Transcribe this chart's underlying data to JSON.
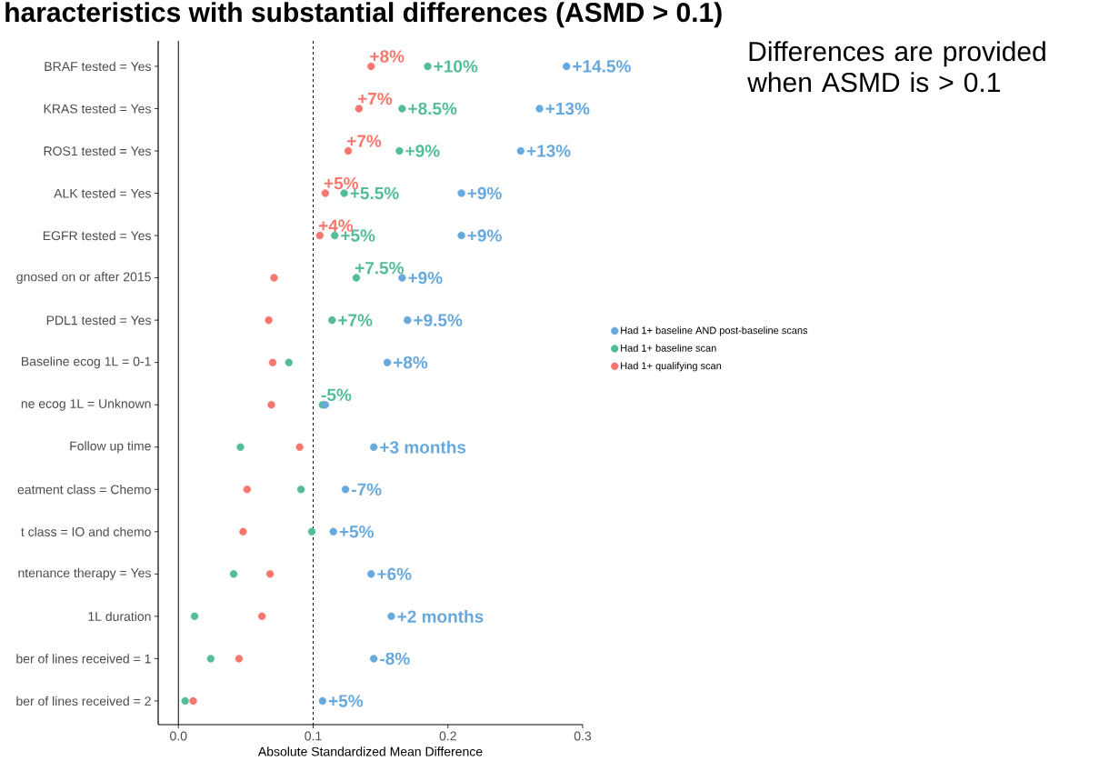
{
  "chart_data": {
    "type": "scatter",
    "orientation": "horizontal",
    "title": "haracteristics with substantial differences (ASMD > 0.1)",
    "xlabel": "Absolute Standardized Mean Difference",
    "annotations": [
      "Differences are provided when ASMD is > 0.1",
      {
        "text": "+14.5%",
        "x": 0.288,
        "y": "BRAF tested = Yes"
      },
      {
        "text": "+10%",
        "x": 0.185,
        "y": "BRAF tested = Yes"
      },
      {
        "text": "+8%",
        "x": 0.143,
        "y": "BRAF tested = Yes"
      },
      {
        "text": "+13%",
        "x": 0.268,
        "y": "KRAS tested = Yes"
      },
      {
        "text": "+8.5%",
        "x": 0.166,
        "y": "KRAS tested = Yes"
      },
      {
        "text": "+7%",
        "x": 0.134,
        "y": "KRAS tested = Yes"
      },
      {
        "text": "+13%",
        "x": 0.254,
        "y": "ROS1 tested = Yes"
      },
      {
        "text": "+9%",
        "x": 0.164,
        "y": "ROS1 tested = Yes"
      },
      {
        "text": "+7%",
        "x": 0.126,
        "y": "ROS1 tested = Yes"
      },
      {
        "text": "+9%",
        "x": 0.21,
        "y": "ALK tested = Yes"
      },
      {
        "text": "+5.5%",
        "x": 0.123,
        "y": "ALK tested = Yes"
      },
      {
        "text": "+5%",
        "x": 0.109,
        "y": "ALK tested = Yes"
      },
      {
        "text": "+9%",
        "x": 0.21,
        "y": "EGFR tested = Yes"
      },
      {
        "text": "+5%",
        "x": 0.116,
        "y": "EGFR tested = Yes"
      },
      {
        "text": "+4%",
        "x": 0.105,
        "y": "EGFR tested = Yes"
      },
      {
        "text": "+9%",
        "x": 0.166,
        "y": "gnosed on or after 2015"
      },
      {
        "text": "+7.5%",
        "x": 0.132,
        "y": "gnosed on or after 2015"
      },
      {
        "text": "+9.5%",
        "x": 0.17,
        "y": "PDL1 tested = Yes"
      },
      {
        "text": "+7%",
        "x": 0.114,
        "y": "PDL1 tested = Yes"
      },
      {
        "text": "+8%",
        "x": 0.155,
        "y": "Baseline ecog 1L = 0-1"
      },
      {
        "text": "-5%",
        "x": 0.107,
        "y": "ne ecog 1L = Unknown"
      },
      {
        "text": "+3 months",
        "x": 0.145,
        "y": "Follow up time"
      },
      {
        "text": "-7%",
        "x": 0.124,
        "y": "eatment class = Chemo"
      },
      {
        "text": "+5%",
        "x": 0.115,
        "y": "t class = IO and chemo"
      },
      {
        "text": "+6%",
        "x": 0.143,
        "y": "ntenance therapy = Yes"
      },
      {
        "text": "+2 months",
        "x": 0.158,
        "y": "1L duration"
      },
      {
        "text": "-8%",
        "x": 0.145,
        "y": "ber of lines received = 1"
      },
      {
        "text": "+5%",
        "x": 0.107,
        "y": "ber of lines received = 2"
      }
    ],
    "categories": [
      "BRAF tested = Yes",
      "KRAS tested = Yes",
      "ROS1 tested = Yes",
      "ALK tested = Yes",
      "EGFR tested = Yes",
      "gnosed on or after 2015",
      "PDL1 tested = Yes",
      "Baseline ecog 1L = 0-1",
      "ne ecog 1L = Unknown",
      "Follow up time",
      "eatment class = Chemo",
      "t class = IO and chemo",
      "ntenance therapy = Yes",
      "1L duration",
      "ber of lines received = 1",
      "ber of lines received = 2"
    ],
    "series": [
      {
        "name": "Had 1+ baseline AND post-baseline scans",
        "color": "#67a9dc",
        "values": [
          0.288,
          0.268,
          0.254,
          0.21,
          0.21,
          0.166,
          0.17,
          0.155,
          0.109,
          0.145,
          0.124,
          0.115,
          0.143,
          0.158,
          0.145,
          0.107
        ]
      },
      {
        "name": "Had 1+ baseline scan",
        "color": "#52bd96",
        "values": [
          0.185,
          0.166,
          0.164,
          0.123,
          0.116,
          0.132,
          0.114,
          0.082,
          0.107,
          0.046,
          0.091,
          0.099,
          0.041,
          0.012,
          0.024,
          0.005
        ]
      },
      {
        "name": "Had 1+ qualifying scan",
        "color": "#f8766d",
        "values": [
          0.143,
          0.134,
          0.126,
          0.109,
          0.105,
          0.071,
          0.067,
          0.07,
          0.069,
          0.09,
          0.051,
          0.048,
          0.068,
          0.062,
          0.045,
          0.011
        ]
      }
    ],
    "xlim": [
      -0.015,
      0.3
    ],
    "xticks": [
      {
        "value": 0,
        "label": "0.0"
      },
      0.1,
      0.2,
      0.3
    ],
    "ref_lines": [
      {
        "axis": "x",
        "value": 0,
        "line_style": "solid",
        "color": "#000000"
      },
      {
        "axis": "x",
        "value": 0.1,
        "line_style": "dashed",
        "color": "#000000"
      }
    ],
    "legend": "right",
    "marker": "circle"
  }
}
